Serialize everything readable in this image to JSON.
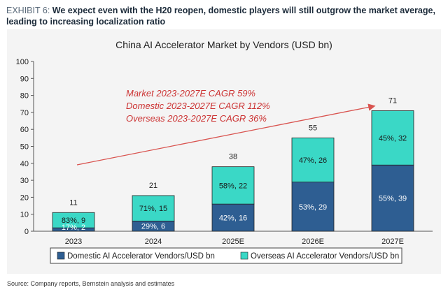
{
  "exhibit": {
    "label": "EXHIBIT 6:",
    "headline": "We expect even with the H20 reopen, domestic players will still outgrow the market average, leading to increasing localization ratio"
  },
  "source": "Source: Company reports, Bernstein analysis and estimates",
  "chart_data": {
    "type": "bar",
    "stacked": true,
    "title": "China AI Accelerator Market by Vendors (USD bn)",
    "categories": [
      "2023",
      "2024",
      "2025E",
      "2026E",
      "2027E"
    ],
    "series": [
      {
        "name": "Domestic AI  Accelerator Vendors/USD bn",
        "color": "#2e5e92",
        "values": [
          2,
          6,
          16,
          29,
          39
        ],
        "labels": [
          "17%, 2",
          "29%, 6",
          "42%, 16",
          "53%, 29",
          "55%, 39"
        ]
      },
      {
        "name": "Overseas AI Accelerator Vendors/USD bn",
        "color": "#3ad8c6",
        "values": [
          9,
          15,
          22,
          26,
          32
        ],
        "labels": [
          "83%, 9",
          "71%, 15",
          "58%, 22",
          "47%, 26",
          "45%, 32"
        ]
      }
    ],
    "totals": [
      "11",
      "21",
      "38",
      "55",
      "71"
    ],
    "yticks": [
      "0",
      "10",
      "20",
      "30",
      "40",
      "50",
      "60",
      "70",
      "80",
      "90",
      "100"
    ],
    "ylim": [
      0,
      100
    ],
    "grid": false,
    "legend_position": "bottom",
    "annotations": [
      "Market 2023-2027E CAGR 59%",
      "Domestic 2023-2027E CAGR 112%",
      "Overseas 2023-2027E CAGR 36%"
    ],
    "annotation_color": "#cc3333",
    "arrow_color": "#d9534f"
  }
}
